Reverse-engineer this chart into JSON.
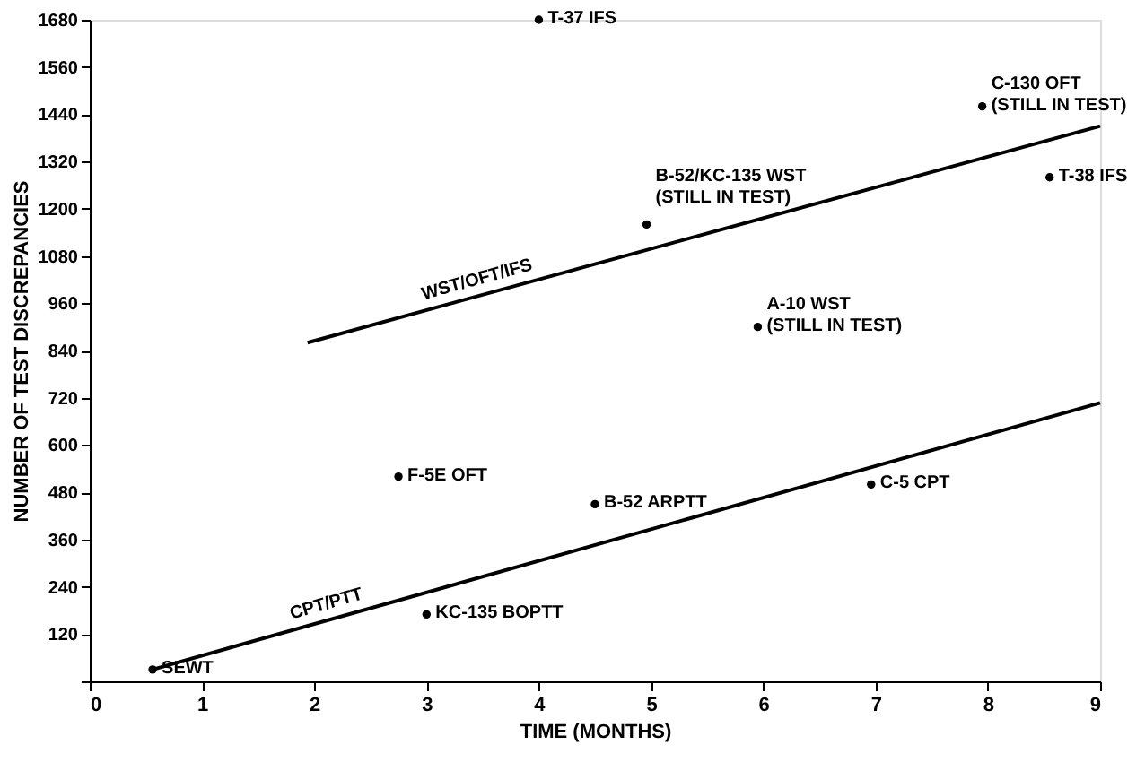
{
  "chart_data": {
    "type": "scatter",
    "xlabel": "TIME (MONTHS)",
    "ylabel": "NUMBER OF TEST DISCREPANCIES",
    "xlim": [
      0,
      9
    ],
    "xticks": [
      0,
      1,
      2,
      3,
      4,
      5,
      6,
      7,
      8,
      9
    ],
    "ylim": [
      0,
      1680
    ],
    "yticks": [
      {
        "value": 0,
        "label": null
      },
      120,
      240,
      360,
      480,
      600,
      720,
      840,
      960,
      1080,
      1200,
      1320,
      1440,
      1560,
      1680
    ],
    "grid": false,
    "marker": "circle",
    "series": [
      {
        "color": "#000000",
        "x": [
          4.0,
          7.95,
          8.55,
          4.96,
          5.95,
          2.75,
          4.5,
          6.96,
          3.0,
          0.56
        ],
        "values": [
          1680,
          1460,
          1280,
          1160,
          900,
          520,
          450,
          500,
          170,
          30
        ]
      },
      {
        "type": "line",
        "name": "WST/OFT/IFS",
        "color": "#000000",
        "marker": "none",
        "line_style": "solid",
        "x": [
          1.94,
          9
        ],
        "values": [
          860,
          1410
        ]
      },
      {
        "type": "line",
        "name": "CPT/PTT",
        "color": "#000000",
        "marker": "none",
        "line_style": "solid",
        "x": [
          0.56,
          9
        ],
        "values": [
          30,
          707
        ]
      }
    ],
    "annotations": [
      {
        "text": "T-37 IFS",
        "x": 4.0,
        "y": 1680
      },
      {
        "text": "C-130 OFT\n(STILL IN TEST)",
        "x": 7.95,
        "y": 1460
      },
      {
        "text": "T-38 IFS",
        "x": 8.55,
        "y": 1280
      },
      {
        "text": "B-52/KC-135 WST\n(STILL IN TEST)",
        "x": 4.96,
        "y": 1160
      },
      {
        "text": "A-10 WST\n(STILL IN TEST)",
        "x": 5.95,
        "y": 900
      },
      {
        "text": "F-5E OFT",
        "x": 2.75,
        "y": 520
      },
      {
        "text": "B-52 ARPTT",
        "x": 4.5,
        "y": 450
      },
      {
        "text": "C-5 CPT",
        "x": 6.96,
        "y": 500
      },
      {
        "text": "KC-135 BOPTT",
        "x": 3.0,
        "y": 170
      },
      {
        "text": "SEWT",
        "x": 0.56,
        "y": 30
      }
    ]
  }
}
